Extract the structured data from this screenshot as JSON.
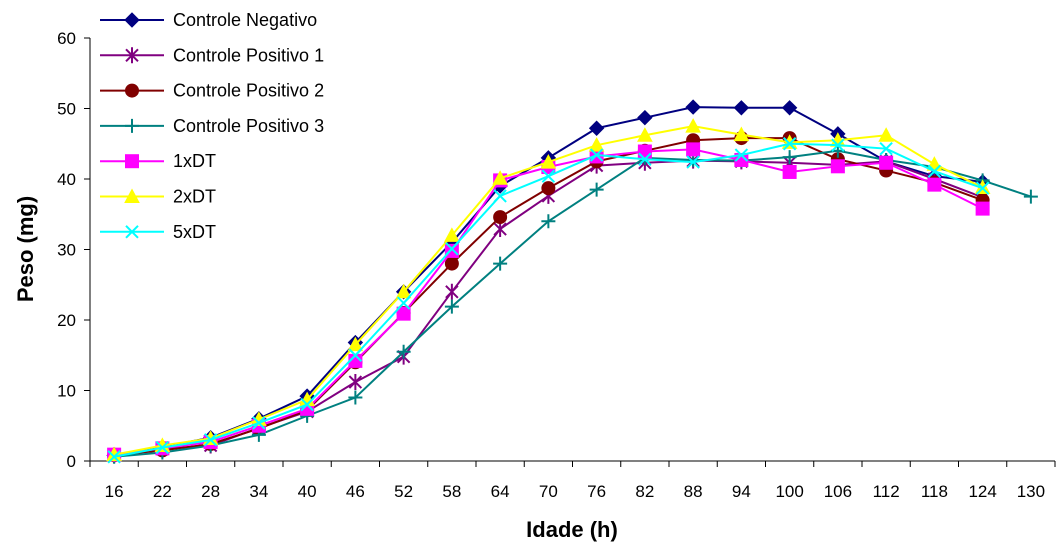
{
  "chart_data": {
    "type": "line",
    "title": "",
    "xlabel": "Idade (h)",
    "ylabel": "Peso (mg)",
    "ylim": [
      0,
      60
    ],
    "yticks": [
      0,
      10,
      20,
      30,
      40,
      50,
      60
    ],
    "categories": [
      "16",
      "22",
      "28",
      "34",
      "40",
      "46",
      "52",
      "58",
      "64",
      "70",
      "76",
      "82",
      "88",
      "94",
      "100",
      "106",
      "112",
      "118",
      "124",
      "130"
    ],
    "grid": false,
    "legend_position": "top-left",
    "series": [
      {
        "name": "Controle Negativo",
        "color": "#000080",
        "marker": "diamond",
        "values": [
          0.8,
          2.0,
          3.3,
          6.0,
          9.2,
          16.8,
          24.0,
          31.0,
          39.0,
          43.0,
          47.2,
          48.7,
          50.2,
          50.1,
          50.1,
          46.4,
          42.5,
          40.4,
          39.6,
          null
        ]
      },
      {
        "name": "Controle Positivo 1",
        "color": "#800080",
        "marker": "asterisk",
        "values": [
          0.8,
          1.7,
          2.2,
          4.7,
          7.0,
          11.2,
          14.8,
          24.0,
          32.9,
          37.6,
          41.9,
          42.3,
          42.6,
          42.5,
          42.3,
          42.0,
          42.5,
          40.0,
          37.4,
          null
        ]
      },
      {
        "name": "Controle Positivo 2",
        "color": "#800000",
        "marker": "circle",
        "values": [
          0.8,
          1.5,
          2.4,
          4.6,
          7.2,
          14.0,
          21.0,
          28.0,
          34.6,
          38.7,
          42.5,
          44.0,
          45.5,
          45.8,
          45.8,
          42.8,
          41.2,
          39.5,
          37.0,
          null
        ]
      },
      {
        "name": "Controle Positivo 3",
        "color": "#008080",
        "marker": "plus",
        "values": [
          0.6,
          1.2,
          2.2,
          3.7,
          6.4,
          9.0,
          15.5,
          21.9,
          28.0,
          34.0,
          38.5,
          43.0,
          42.7,
          42.6,
          43.1,
          44.0,
          42.7,
          41.7,
          39.8,
          37.5
        ]
      },
      {
        "name": "1xDT",
        "color": "#ff00ff",
        "marker": "square",
        "values": [
          0.9,
          1.8,
          2.7,
          5.0,
          7.4,
          14.2,
          20.9,
          29.8,
          39.8,
          41.7,
          43.2,
          43.9,
          44.2,
          42.7,
          41.0,
          41.8,
          42.3,
          39.2,
          35.8,
          null
        ]
      },
      {
        "name": "2xDT",
        "color": "#ffff00",
        "marker": "triangle",
        "values": [
          0.9,
          2.2,
          3.2,
          5.9,
          8.7,
          16.5,
          24.0,
          32.0,
          40.1,
          42.4,
          44.8,
          46.2,
          47.5,
          46.3,
          45.2,
          45.5,
          46.2,
          42.1,
          38.8,
          null
        ]
      },
      {
        "name": "5xDT",
        "color": "#00ffff",
        "marker": "x",
        "values": [
          0.6,
          1.9,
          3.0,
          5.4,
          8.0,
          15.0,
          22.4,
          30.1,
          37.6,
          40.4,
          43.4,
          42.8,
          42.4,
          43.4,
          45.0,
          44.8,
          44.3,
          41.1,
          38.7,
          null
        ]
      }
    ]
  }
}
